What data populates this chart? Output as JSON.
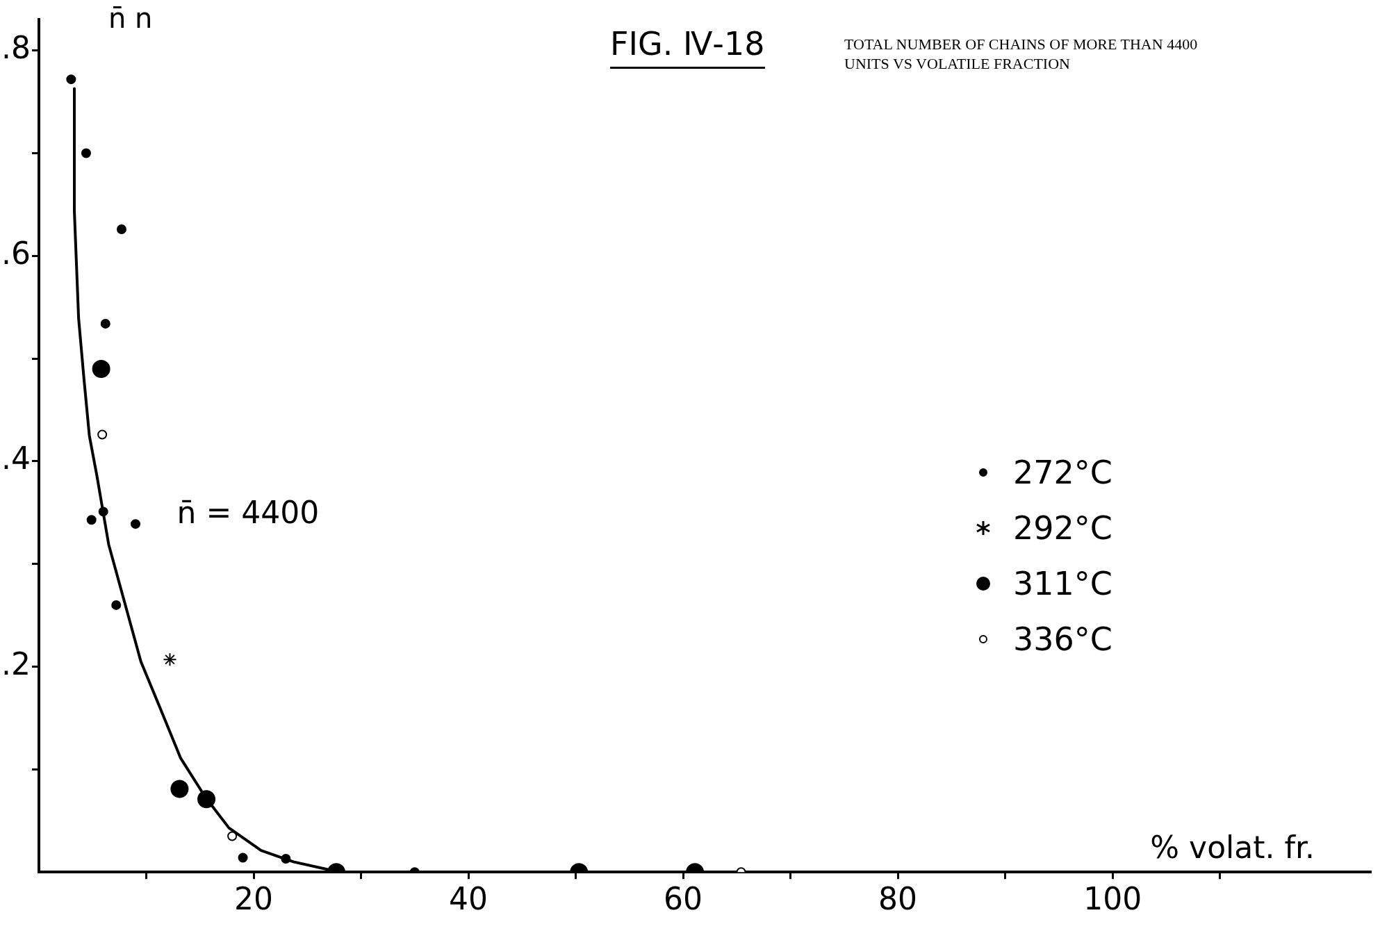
{
  "chart_data": {
    "type": "scatter",
    "title": "FIG. Ⅳ-18",
    "subtitle": "TOTAL NUMBER OF CHAINS OF MORE THAN 4400 UNITS VS VOLATILE FRACTION",
    "xlabel": "% volat. fr.",
    "ylabel": "n̄ n",
    "xlim": [
      0,
      124
    ],
    "ylim": [
      0,
      0.83
    ],
    "xticks": [
      {
        "value": 10,
        "label": null
      },
      20,
      {
        "value": 30,
        "label": null
      },
      40,
      {
        "value": 50,
        "label": null
      },
      60,
      {
        "value": 70,
        "label": null
      },
      80,
      {
        "value": 90,
        "label": null
      },
      100,
      {
        "value": 110,
        "label": null
      }
    ],
    "yticks": [
      {
        "value": 0.1,
        "label": null
      },
      {
        "value": 0.2,
        "label": ".2"
      },
      {
        "value": 0.3,
        "label": null
      },
      {
        "value": 0.4,
        "label": ".4"
      },
      {
        "value": 0.5,
        "label": null
      },
      {
        "value": 0.6,
        "label": ".6"
      },
      {
        "value": 0.7,
        "label": null
      },
      {
        "value": 0.8,
        "label": ".8"
      }
    ],
    "grid": false,
    "legend": "right",
    "annotations": [
      "n̄ = 4400"
    ],
    "series": [
      {
        "name": "272°C",
        "color": "#000000",
        "marker": "circle",
        "x": [
          3.0,
          4.4,
          7.7,
          6.2,
          4.9,
          6.0,
          9.0,
          7.2,
          19.0,
          23.0,
          35
        ],
        "values": [
          0.772,
          0.7,
          0.626,
          0.534,
          0.343,
          0.351,
          0.339,
          0.26,
          0.014,
          0.013,
          0
        ]
      },
      {
        "name": "292°C",
        "color": "#000000",
        "marker": "cross",
        "x": [
          12.2
        ],
        "values": [
          0.207
        ]
      },
      {
        "name": "311°C",
        "color": "#000000",
        "x": [
          5.8,
          13.1,
          15.6,
          27.7,
          50.3,
          61.1
        ],
        "values": [
          0.49,
          0.081,
          0.071,
          0,
          0,
          0
        ]
      },
      {
        "name": "336°C",
        "color": "#ffffff",
        "marker": "circle",
        "x": [
          5.9,
          18.0,
          65.4
        ],
        "values": [
          0.426,
          0.035,
          0
        ]
      },
      {
        "type": "line",
        "color": "#000000",
        "marker": "none",
        "line_style": "solid",
        "x": [
          3.3,
          3.3,
          3.7,
          4.2,
          4.7,
          5.4,
          6.5,
          8.0,
          9.5,
          11.4,
          13.2,
          15.5,
          17.7,
          20.7,
          23.7,
          26.7,
          28
        ],
        "values": [
          0.763,
          0.644,
          0.539,
          0.48,
          0.425,
          0.386,
          0.319,
          0.262,
          0.205,
          0.157,
          0.111,
          0.073,
          0.043,
          0.021,
          0.01,
          0.003,
          0
        ]
      }
    ]
  }
}
